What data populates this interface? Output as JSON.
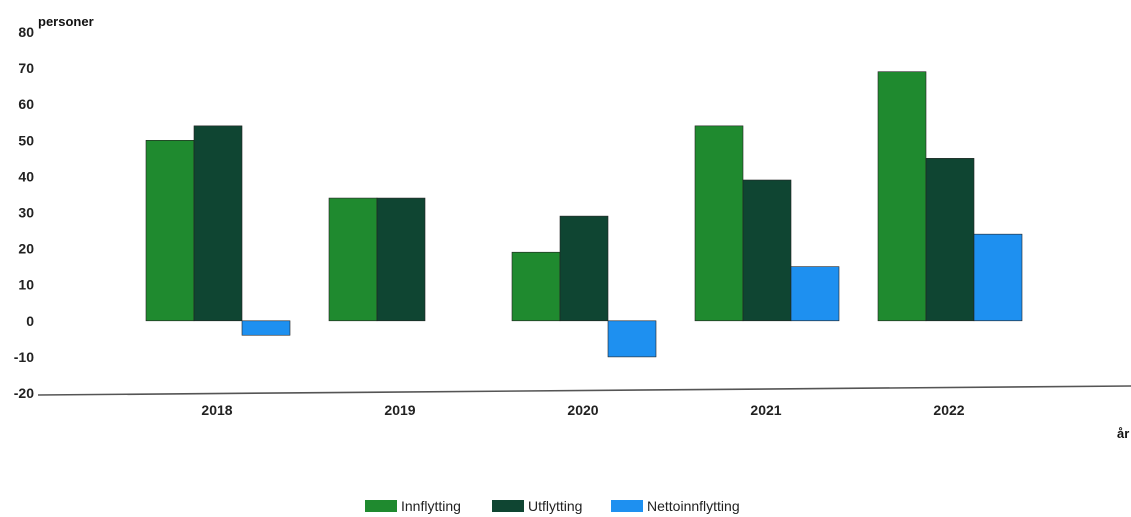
{
  "chart_data": {
    "type": "bar",
    "title": "",
    "ylabel": "personer",
    "xlabel": "år",
    "ylim": [
      -20,
      80
    ],
    "yticks": [
      80,
      70,
      60,
      50,
      40,
      30,
      20,
      10,
      0,
      -10,
      -20
    ],
    "categories": [
      "2018",
      "2019",
      "2020",
      "2021",
      "2022"
    ],
    "series": [
      {
        "name": "Innflytting",
        "color": "#1f8a2f",
        "values": [
          50,
          34,
          19,
          54,
          69
        ]
      },
      {
        "name": "Utflytting",
        "color": "#0f4532",
        "values": [
          54,
          34,
          29,
          39,
          45
        ]
      },
      {
        "name": "Nettoinnflytting",
        "color": "#1e90f0",
        "values": [
          -4,
          0,
          -10,
          15,
          24
        ]
      }
    ],
    "legend_position": "bottom",
    "grid": false
  }
}
